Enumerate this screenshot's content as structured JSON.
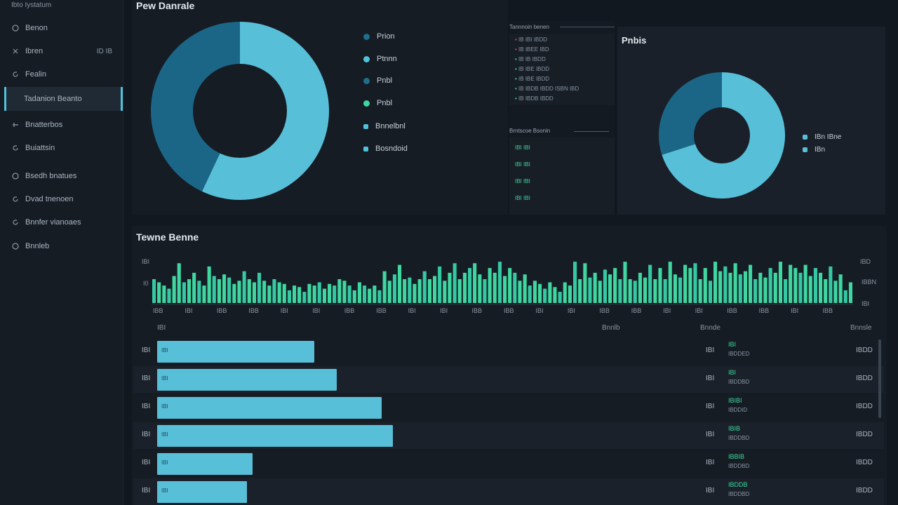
{
  "sidebar": {
    "title": "Ibto Iystatum",
    "items": [
      {
        "label": "Benon",
        "icon": "circle-icon"
      },
      {
        "label": "Ibren",
        "icon": "close-icon",
        "extra": "ID IB"
      },
      {
        "label": "Fealin",
        "icon": "refresh-icon"
      },
      {
        "label": "Tadanion Beanto",
        "icon": "none"
      },
      {
        "label": "Bnatterbos",
        "icon": "link-icon"
      },
      {
        "label": "Buiattsin",
        "icon": "refresh-icon"
      },
      {
        "label": "Bsedh bnatues",
        "icon": "circle-icon"
      },
      {
        "label": "Dvad tnenoen",
        "icon": "refresh-icon"
      },
      {
        "label": "Bnnfer vianoaes",
        "icon": "refresh-icon"
      },
      {
        "label": "Bnnleb",
        "icon": "circle-icon"
      }
    ]
  },
  "donut1": {
    "title": "Pew Danrale",
    "legend": [
      {
        "label": "Prion",
        "color": "#1e6f8c"
      },
      {
        "label": "Ptnnn",
        "color": "#4fc3dc"
      },
      {
        "label": "Pnbl",
        "color": "#1e6f8c"
      },
      {
        "label": "Pnbl",
        "color": "#3fd6a0"
      },
      {
        "label": "Bnnelbnl",
        "color": "#4fc3dc"
      },
      {
        "label": "Bosndoid",
        "color": "#4fc3dc"
      }
    ],
    "values": [
      0.57,
      0.43
    ],
    "colors": [
      "#58bfd9",
      "#1b6687"
    ]
  },
  "log1": {
    "header": "Tannnoin benen",
    "lines": [
      {
        "text": "IB IBI IBDD",
        "color": "#e0405a"
      },
      {
        "text": "IB IBEE IBD",
        "color": "#e0405a"
      },
      {
        "text": "IB IB IBDD",
        "color": "#3fd6a0"
      },
      {
        "text": "IB IBE IBDD",
        "color": "#3fd6a0"
      },
      {
        "text": "IB IBE IBDD",
        "color": "#3fd6a0"
      },
      {
        "text": "IB IBDB IBDD ISBN IBD",
        "color": "#3fd6a0"
      },
      {
        "text": "IB IBDB IBDD",
        "color": "#3fd6a0"
      }
    ]
  },
  "log2": {
    "header": "Brntscoe Bsonin",
    "lines": [
      "IBI IBI",
      "IBI IBI",
      "IBI IBI",
      "IBI IBI"
    ]
  },
  "donut2": {
    "title": "Pnbis",
    "legend": [
      {
        "label": "IBn IBne",
        "color": "#58bfd9"
      },
      {
        "label": "IBn",
        "color": "#58bfd9"
      }
    ],
    "values": [
      0.7,
      0.3
    ],
    "colors": [
      "#58bfd9",
      "#1b6687"
    ]
  },
  "timeline": {
    "title": "Tewne Benne",
    "y_left": [
      "IBI",
      "I0"
    ],
    "y_right": [
      "IBD",
      "IBBN",
      "IBI"
    ],
    "x_ticks": [
      "IBB",
      "IBI",
      "IBB",
      "IBB",
      "IBI",
      "IBI",
      "IBB",
      "IBB",
      "IBI",
      "IBI",
      "IBB",
      "IBB",
      "IBI",
      "IBI",
      "IBB",
      "IBB",
      "IBI",
      "IBI",
      "IBB",
      "IBB",
      "IBI",
      "IBB"
    ],
    "values": [
      30,
      26,
      22,
      18,
      34,
      50,
      26,
      30,
      38,
      28,
      22,
      46,
      34,
      30,
      36,
      32,
      24,
      28,
      40,
      30,
      26,
      38,
      28,
      22,
      30,
      26,
      24,
      16,
      22,
      20,
      14,
      24,
      22,
      26,
      18,
      24,
      22,
      30,
      28,
      22,
      16,
      26,
      22,
      18,
      22,
      16,
      40,
      28,
      36,
      48,
      30,
      32,
      24,
      30,
      40,
      30,
      34,
      46,
      28,
      38,
      50,
      30,
      38,
      44,
      50,
      36,
      30,
      44,
      38,
      52,
      34,
      44,
      38,
      28,
      36,
      22,
      28,
      24,
      18,
      26,
      20,
      14,
      26,
      22,
      52,
      30,
      50,
      32,
      38,
      28,
      42,
      36,
      44,
      30,
      52,
      30,
      28,
      38,
      32,
      48,
      30,
      44,
      30,
      52,
      36,
      32,
      48,
      44,
      50,
      30,
      44,
      28,
      52,
      40,
      46,
      38,
      50,
      36,
      40,
      48,
      30,
      38,
      32,
      44,
      38,
      52,
      30,
      48,
      44,
      38,
      48,
      34,
      44,
      38,
      30,
      46,
      28,
      36,
      16,
      26
    ]
  },
  "table": {
    "columns": [
      "IBI",
      "Bnnlb",
      "Bnnde",
      "Bnnsle"
    ],
    "rows": [
      {
        "label": "IBI",
        "value": 0.28,
        "bar_text": "IBI",
        "c1": "IBI",
        "c2a": "IBI",
        "c2b": "IBDDED",
        "c3": "IBDD"
      },
      {
        "label": "IBI",
        "value": 0.32,
        "bar_text": "IBI",
        "c1": "IBI",
        "c2a": "IBI",
        "c2b": "IBDDBD",
        "c3": "IBDD"
      },
      {
        "label": "IBI",
        "value": 0.4,
        "bar_text": "IBI",
        "c1": "IBI",
        "c2a": "IBIBI",
        "c2b": "IBDDID",
        "c3": "IBDD"
      },
      {
        "label": "IBI",
        "value": 0.42,
        "bar_text": "IBI",
        "c1": "IBI",
        "c2a": "IBIB",
        "c2b": "IBDDBD",
        "c3": "IBDD"
      },
      {
        "label": "IBI",
        "value": 0.17,
        "bar_text": "IBI",
        "c1": "IBI",
        "c2a": "IBBIB",
        "c2b": "IBDDBD",
        "c3": "IBDD"
      },
      {
        "label": "IBI",
        "value": 0.16,
        "bar_text": "IBI",
        "c1": "IBI",
        "c2a": "IBDDB",
        "c2b": "IBDDBD",
        "c3": "IBDD"
      }
    ]
  }
}
